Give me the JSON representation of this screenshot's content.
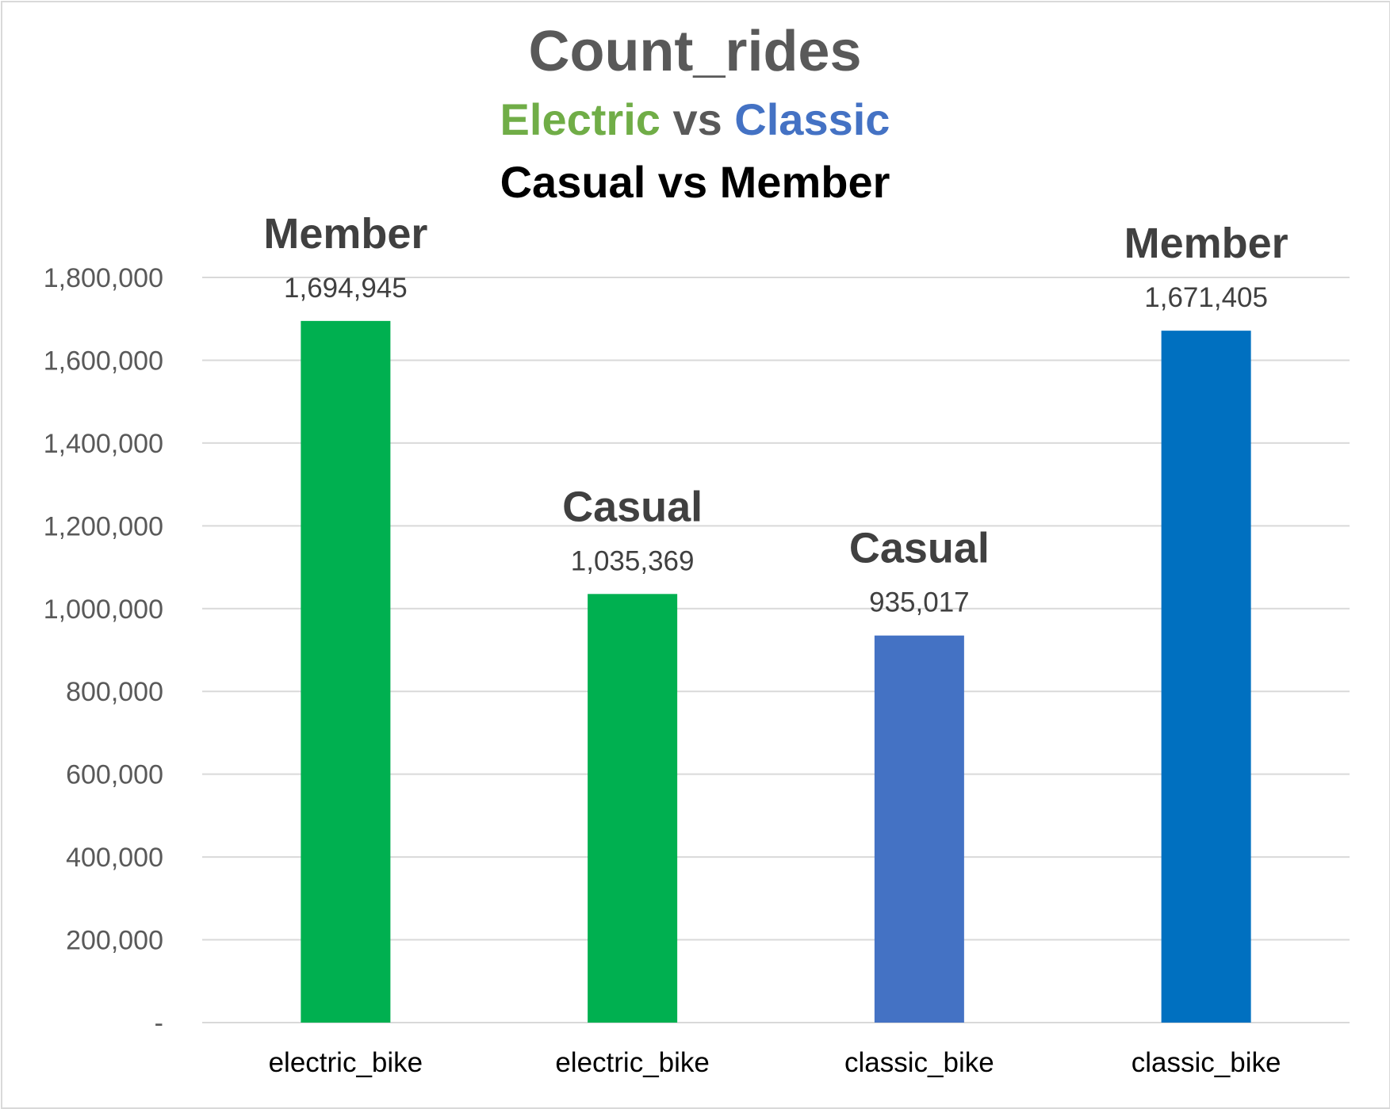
{
  "chart_data": {
    "type": "bar",
    "title": "Count_rides",
    "subtitle_parts": [
      {
        "text": "Electric",
        "color": "#70ad47"
      },
      {
        "text": " vs ",
        "color": "#595959"
      },
      {
        "text": "Classic",
        "color": "#4472c4"
      }
    ],
    "subtitle2": "Casual vs Member",
    "categories": [
      "electric_bike",
      "electric_bike",
      "classic_bike",
      "classic_bike"
    ],
    "values": [
      1694945,
      1035369,
      935017,
      1671405
    ],
    "value_labels": [
      "1,694,945",
      "1,035,369",
      "935,017",
      "1,671,405"
    ],
    "bar_labels": [
      "Member",
      "Casual",
      "Casual",
      "Member"
    ],
    "bar_colors": [
      "#00b050",
      "#00b050",
      "#4472c4",
      "#0070c0"
    ],
    "ylim": [
      0,
      1800000
    ],
    "yticks": [
      0,
      200000,
      400000,
      600000,
      800000,
      1000000,
      1200000,
      1400000,
      1600000,
      1800000
    ],
    "ytick_labels": [
      "-",
      "200,000",
      "400,000",
      "600,000",
      "800,000",
      "1,000,000",
      "1,200,000",
      "1,400,000",
      "1,600,000",
      "1,800,000"
    ],
    "xlabel": "",
    "ylabel": "",
    "grid": true,
    "gridline_color": "#d9d9d9"
  }
}
